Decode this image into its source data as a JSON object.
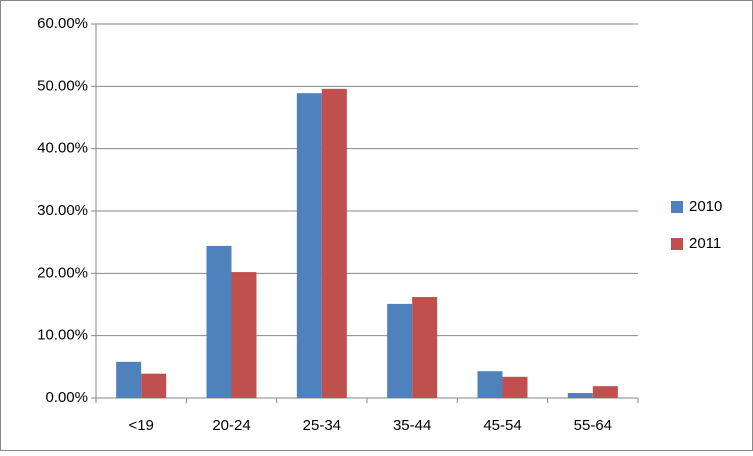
{
  "chart_data": {
    "type": "bar",
    "categories": [
      "<19",
      "20-24",
      "25-34",
      "35-44",
      "45-54",
      "55-64"
    ],
    "series": [
      {
        "name": "2010",
        "color": "#4f81bd",
        "values": [
          5.8,
          24.4,
          48.9,
          15.1,
          4.3,
          0.8
        ]
      },
      {
        "name": "2011",
        "color": "#c0504d",
        "values": [
          3.9,
          20.2,
          49.6,
          16.2,
          3.4,
          1.9
        ]
      }
    ],
    "ylim": [
      0,
      60
    ],
    "yticks": [
      {
        "value": 0,
        "label": "0.00%"
      },
      {
        "value": 10,
        "label": "10.00%"
      },
      {
        "value": 20,
        "label": "20.00%"
      },
      {
        "value": 30,
        "label": "30.00%"
      },
      {
        "value": 40,
        "label": "40.00%"
      },
      {
        "value": 50,
        "label": "50.00%"
      },
      {
        "value": 60,
        "label": "60.00%"
      }
    ],
    "grid": true,
    "legend": "right"
  }
}
